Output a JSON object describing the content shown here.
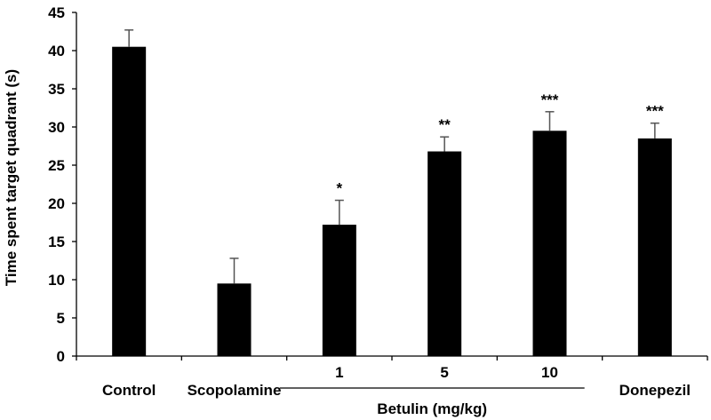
{
  "chart_data": {
    "type": "bar",
    "categories": [
      "Control",
      "Scopolamine",
      "1",
      "5",
      "10",
      "Donepezil"
    ],
    "values": [
      40.5,
      9.5,
      17.2,
      26.8,
      29.5,
      28.5
    ],
    "errors": [
      2.2,
      3.3,
      3.2,
      1.9,
      2.5,
      2.0
    ],
    "annotations": [
      "",
      "",
      "*",
      "**",
      "***",
      "***"
    ],
    "bar_color": "#000000",
    "group_label": "Betulin (mg/kg)",
    "group_members": [
      2,
      3,
      4
    ],
    "title": "",
    "xlabel": "",
    "ylabel": "Time spent target quadrant (s)",
    "ylim": [
      0,
      45
    ],
    "yticks": [
      0,
      5,
      10,
      15,
      20,
      25,
      30,
      35,
      40,
      45
    ],
    "grid": false,
    "legend": "none"
  }
}
